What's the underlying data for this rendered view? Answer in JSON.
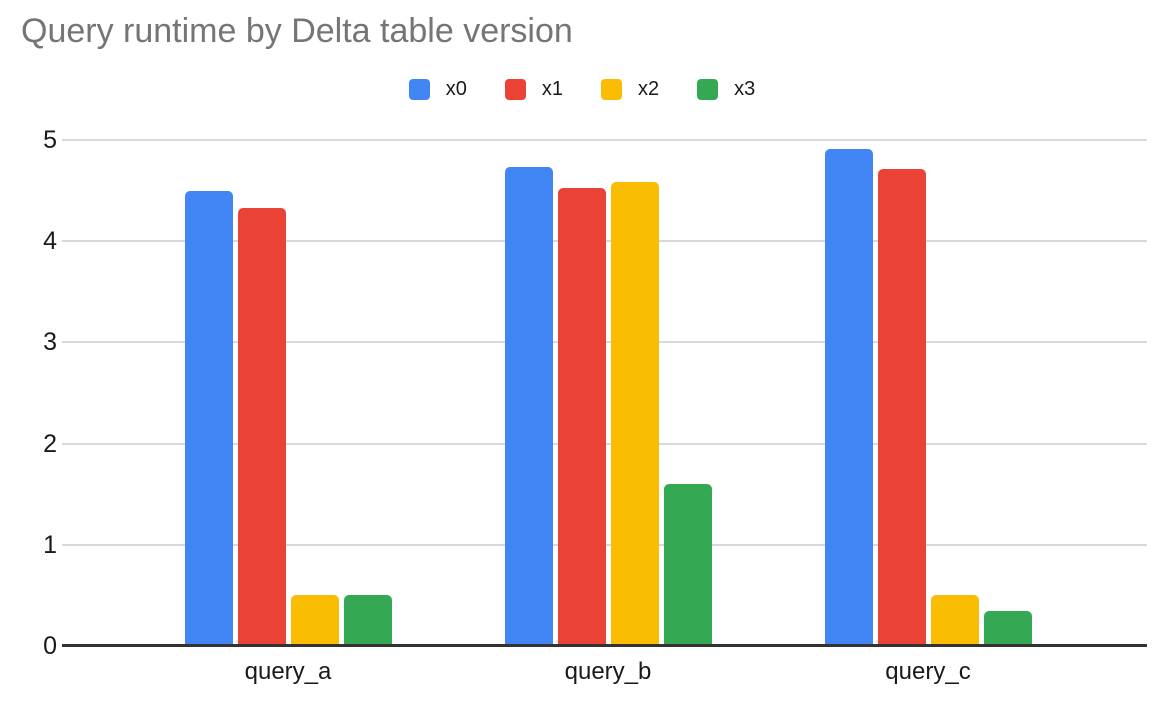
{
  "title": "Query runtime by Delta table version",
  "chart_data": {
    "type": "bar",
    "title": "Query runtime by Delta table version",
    "categories": [
      "query_a",
      "query_b",
      "query_c"
    ],
    "series": [
      {
        "name": "x0",
        "color": "#4285F4",
        "values": [
          4.5,
          4.73,
          4.91
        ]
      },
      {
        "name": "x1",
        "color": "#EA4335",
        "values": [
          4.33,
          4.53,
          4.71
        ]
      },
      {
        "name": "x2",
        "color": "#FBBC04",
        "values": [
          0.5,
          4.59,
          0.5
        ]
      },
      {
        "name": "x3",
        "color": "#34A853",
        "values": [
          0.5,
          1.6,
          0.35
        ]
      }
    ],
    "xlabel": "",
    "ylabel": "",
    "ylim": [
      0,
      5
    ],
    "yticks": [
      0,
      1,
      2,
      3,
      4,
      5
    ],
    "grid": true,
    "legend_position": "top",
    "colors": {
      "title_text": "#757575",
      "axis_text": "#1a1a1a",
      "gridline": "#d9d9d9",
      "axis_line": "#333333",
      "background": "#ffffff"
    }
  }
}
